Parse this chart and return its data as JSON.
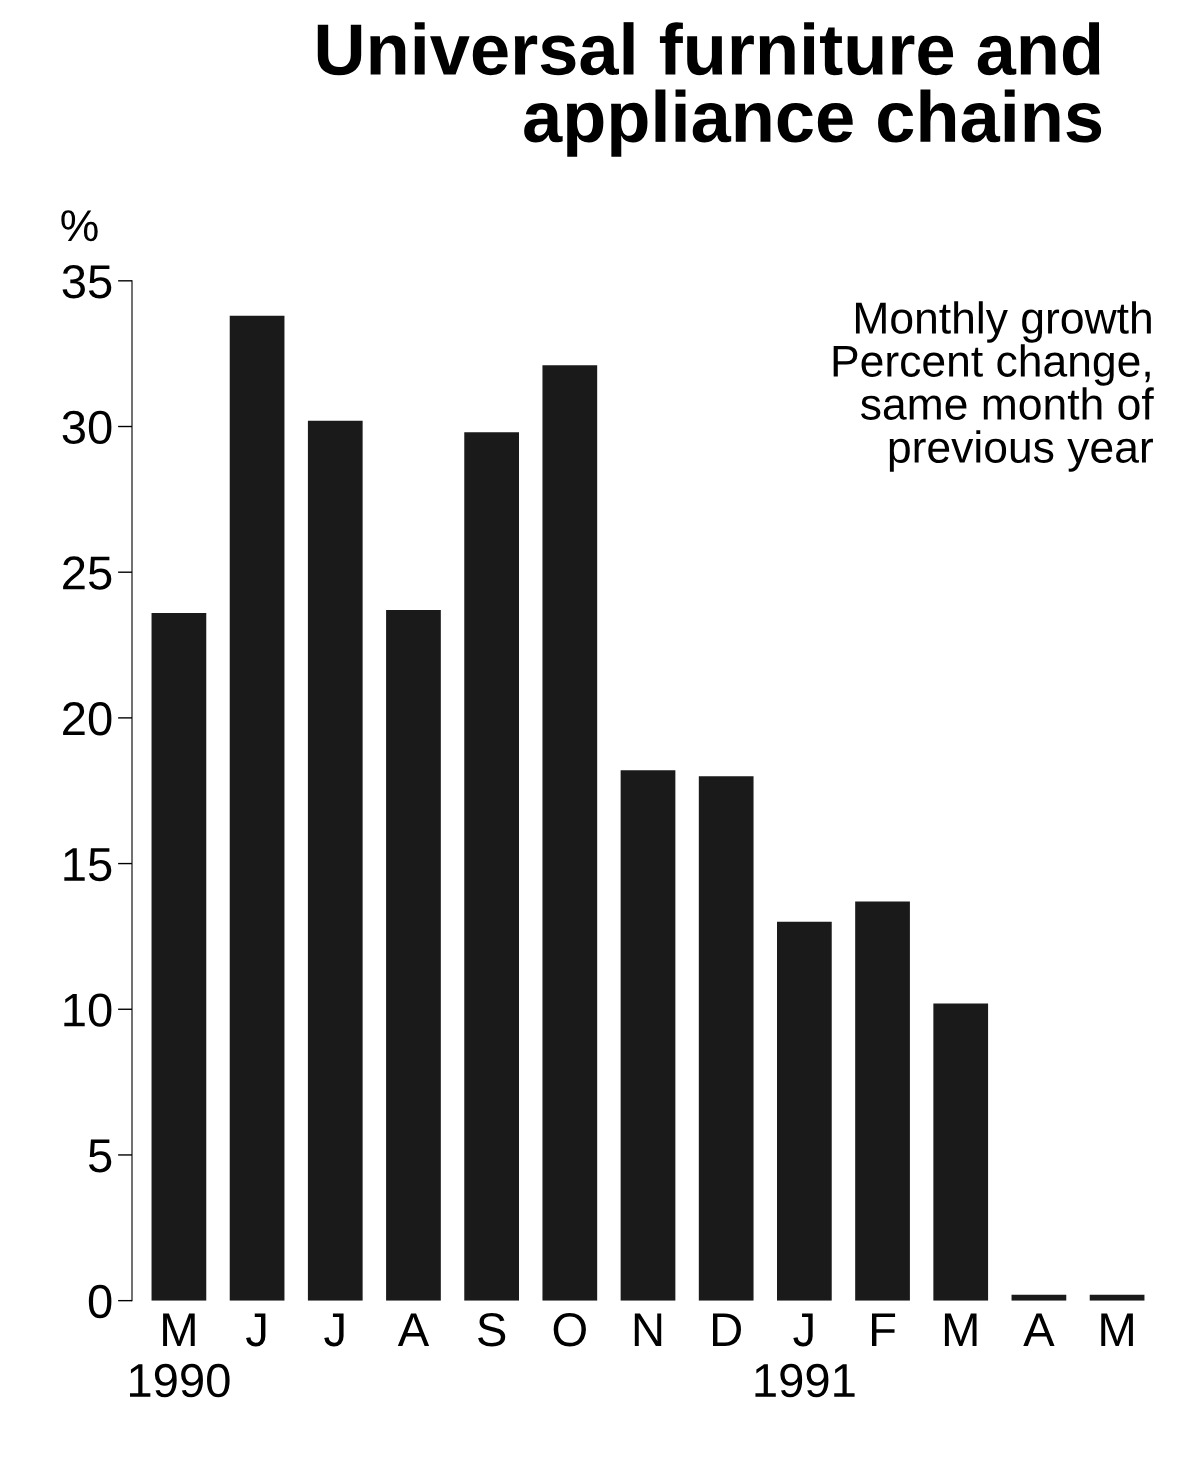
{
  "chart_data": {
    "type": "bar",
    "title": "Universal furniture and\nappliance chains",
    "subtitle": "Monthly growth\nPercent change,\nsame month of\nprevious year",
    "ylabel": "%",
    "categories": [
      "M\n1990",
      "J",
      "J",
      "A",
      "S",
      "O",
      "N",
      "D",
      "J\n1991",
      "F",
      "M",
      "A",
      "M"
    ],
    "values": [
      23.6,
      33.8,
      30.2,
      23.7,
      29.8,
      32.1,
      18.2,
      18.0,
      13.0,
      13.7,
      10.2,
      0.2,
      0.2
    ],
    "color": "#1a1a1a",
    "ylim": [
      0,
      35
    ],
    "yticks": [
      0,
      5,
      10,
      15,
      20,
      25,
      30,
      35
    ],
    "grid": false,
    "legend": false
  }
}
